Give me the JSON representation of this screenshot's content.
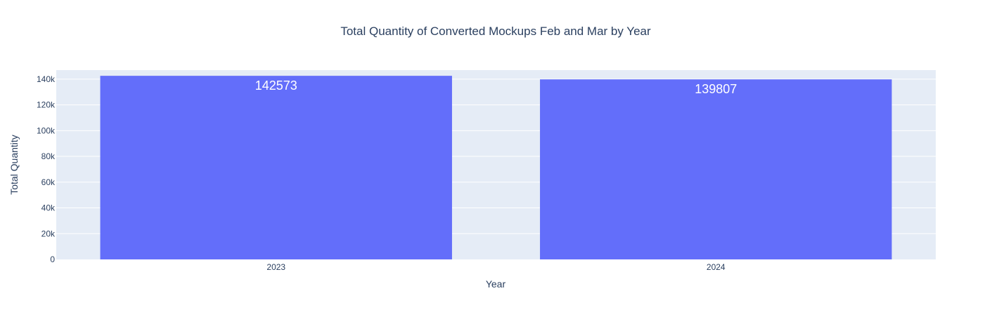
{
  "chart_data": {
    "type": "bar",
    "title": "Total Quantity of Converted Mockups Feb and Mar by Year",
    "xlabel": "Year",
    "ylabel": "Total Quantity",
    "categories": [
      "2023",
      "2024"
    ],
    "values": [
      142573,
      139807
    ],
    "data_labels": [
      "142573",
      "139807"
    ],
    "y_ticks": [
      0,
      20000,
      40000,
      60000,
      80000,
      100000,
      120000,
      140000
    ],
    "y_tick_labels": [
      "0",
      "20k",
      "40k",
      "60k",
      "80k",
      "100k",
      "120k",
      "140k"
    ],
    "ylim": [
      0,
      147000
    ],
    "grid": true,
    "legend": "none",
    "colors": {
      "bar": "#636efa",
      "plot_bg": "#e5ecf6",
      "grid": "#ffffff",
      "text": "#2a3f5f",
      "data_label": "#ffffff"
    }
  }
}
